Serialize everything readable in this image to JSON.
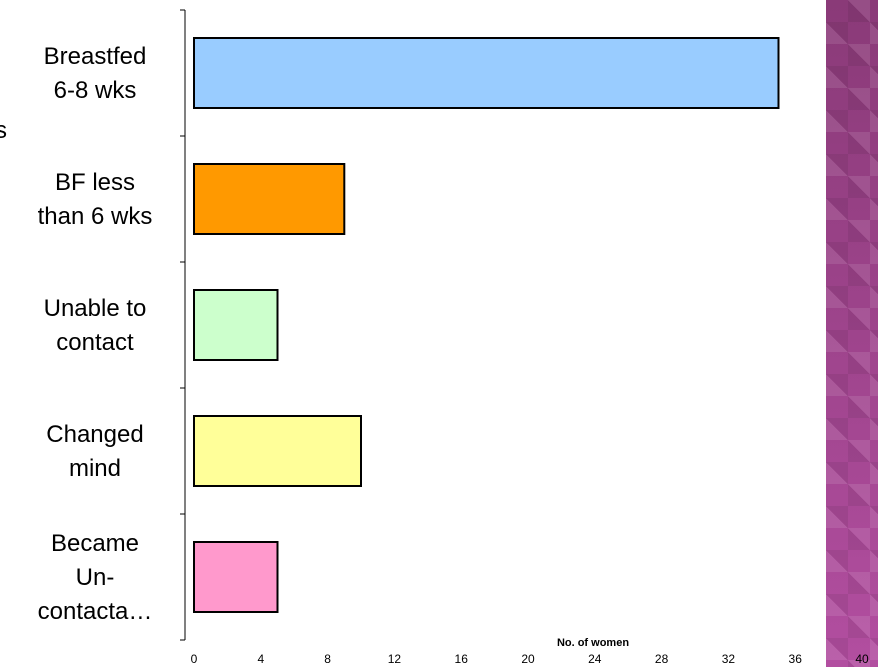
{
  "chart_data": {
    "type": "bar",
    "orientation": "horizontal",
    "categories": [
      "Breastfed 6-8 wks",
      "BF less than 6 wks",
      "Unable to contact",
      "Changed mind",
      "Became Un-contacta…"
    ],
    "category_lines": [
      [
        "Breastfed",
        "6-8 wks"
      ],
      [
        "BF less",
        "than 6 wks"
      ],
      [
        "Unable to",
        "contact"
      ],
      [
        "Changed",
        "mind"
      ],
      [
        "Became",
        "Un-",
        "contacta…"
      ]
    ],
    "values": [
      35,
      9,
      5,
      10,
      5
    ],
    "colors": [
      "#99ccff",
      "#ff9900",
      "#ccffcc",
      "#ffff99",
      "#ff99cc"
    ],
    "xlabel": "No. of women",
    "xlim": [
      0,
      40
    ],
    "xticks": [
      0,
      4,
      8,
      12,
      16,
      20,
      24,
      28,
      32,
      36,
      40
    ],
    "grid": false
  },
  "edge_text": "s",
  "theme": {
    "band_color": "#a3478f"
  }
}
